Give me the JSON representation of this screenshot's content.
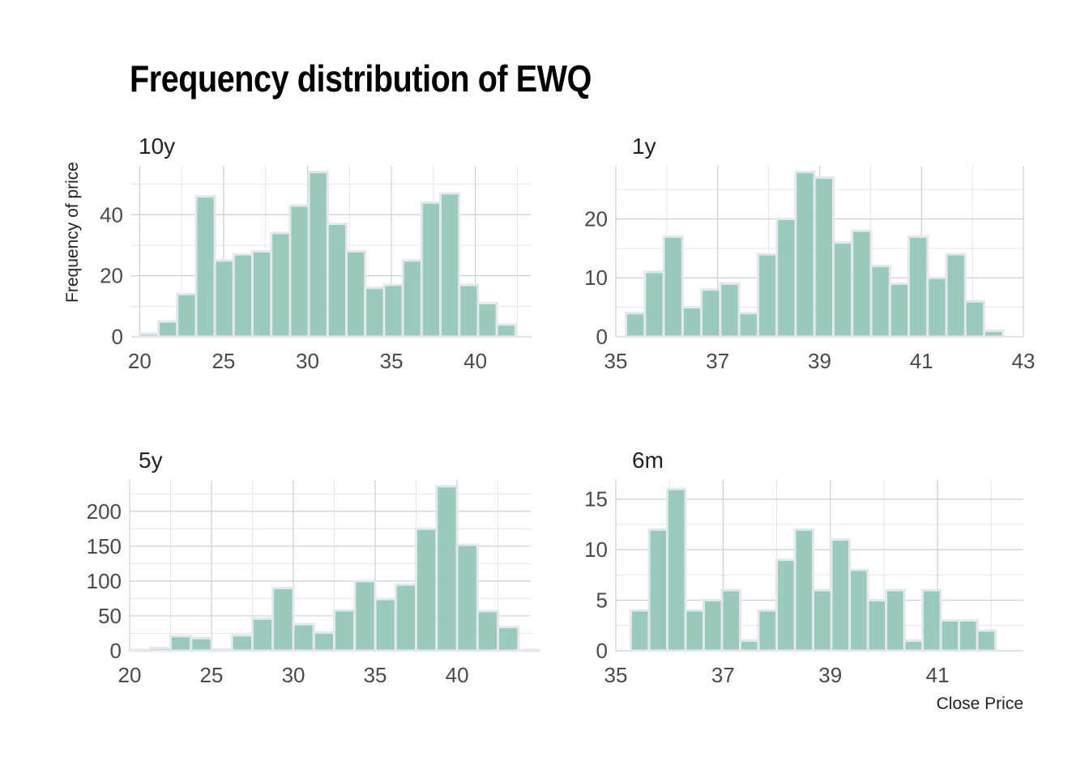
{
  "title": "Frequency distribution of EWQ",
  "x_axis_title": "Close Price",
  "y_axis_title": "Frequency of price",
  "bar_fill": "#94c7b8",
  "bar_outline": "#e4e7ec",
  "chart_data": [
    {
      "type": "bar",
      "facet": "10y",
      "x_ticks": [
        20,
        25,
        30,
        35,
        40
      ],
      "y_ticks": [
        0,
        20,
        40
      ],
      "xlim": [
        19.5,
        43.3
      ],
      "ylim": [
        0,
        56
      ],
      "bins": [
        {
          "x0": 20.0,
          "x1": 21.12,
          "count": 1
        },
        {
          "x0": 21.12,
          "x1": 22.24,
          "count": 5
        },
        {
          "x0": 22.24,
          "x1": 23.36,
          "count": 14
        },
        {
          "x0": 23.36,
          "x1": 24.48,
          "count": 46
        },
        {
          "x0": 24.48,
          "x1": 25.6,
          "count": 25
        },
        {
          "x0": 25.6,
          "x1": 26.72,
          "count": 27
        },
        {
          "x0": 26.72,
          "x1": 27.84,
          "count": 28
        },
        {
          "x0": 27.84,
          "x1": 28.96,
          "count": 34
        },
        {
          "x0": 28.96,
          "x1": 30.08,
          "count": 43
        },
        {
          "x0": 30.08,
          "x1": 31.2,
          "count": 54
        },
        {
          "x0": 31.2,
          "x1": 32.32,
          "count": 37
        },
        {
          "x0": 32.32,
          "x1": 33.44,
          "count": 28
        },
        {
          "x0": 33.44,
          "x1": 34.56,
          "count": 16
        },
        {
          "x0": 34.56,
          "x1": 35.68,
          "count": 17
        },
        {
          "x0": 35.68,
          "x1": 36.8,
          "count": 25
        },
        {
          "x0": 36.8,
          "x1": 37.92,
          "count": 44
        },
        {
          "x0": 37.92,
          "x1": 39.04,
          "count": 47
        },
        {
          "x0": 39.04,
          "x1": 40.16,
          "count": 17
        },
        {
          "x0": 40.16,
          "x1": 41.28,
          "count": 11
        },
        {
          "x0": 41.28,
          "x1": 42.4,
          "count": 4
        }
      ]
    },
    {
      "type": "bar",
      "facet": "1y",
      "x_ticks": [
        35,
        37,
        39,
        41,
        43
      ],
      "y_ticks": [
        0,
        10,
        20
      ],
      "xlim": [
        35.0,
        43.0
      ],
      "ylim": [
        0,
        29
      ],
      "bins": [
        {
          "x0": 35.2,
          "x1": 35.57,
          "count": 4
        },
        {
          "x0": 35.57,
          "x1": 35.94,
          "count": 11
        },
        {
          "x0": 35.94,
          "x1": 36.31,
          "count": 17
        },
        {
          "x0": 36.31,
          "x1": 36.68,
          "count": 5
        },
        {
          "x0": 36.68,
          "x1": 37.05,
          "count": 8
        },
        {
          "x0": 37.05,
          "x1": 37.42,
          "count": 9
        },
        {
          "x0": 37.42,
          "x1": 37.79,
          "count": 4
        },
        {
          "x0": 37.79,
          "x1": 38.16,
          "count": 14
        },
        {
          "x0": 38.16,
          "x1": 38.53,
          "count": 20
        },
        {
          "x0": 38.53,
          "x1": 38.9,
          "count": 28
        },
        {
          "x0": 38.9,
          "x1": 39.27,
          "count": 27
        },
        {
          "x0": 39.27,
          "x1": 39.64,
          "count": 16
        },
        {
          "x0": 39.64,
          "x1": 40.01,
          "count": 18
        },
        {
          "x0": 40.01,
          "x1": 40.38,
          "count": 12
        },
        {
          "x0": 40.38,
          "x1": 40.75,
          "count": 9
        },
        {
          "x0": 40.75,
          "x1": 41.12,
          "count": 17
        },
        {
          "x0": 41.12,
          "x1": 41.49,
          "count": 10
        },
        {
          "x0": 41.49,
          "x1": 41.86,
          "count": 14
        },
        {
          "x0": 41.86,
          "x1": 42.23,
          "count": 6
        },
        {
          "x0": 42.23,
          "x1": 42.6,
          "count": 1
        }
      ]
    },
    {
      "type": "bar",
      "facet": "5y",
      "x_ticks": [
        20,
        25,
        30,
        35,
        40
      ],
      "y_ticks": [
        0,
        50,
        100,
        150,
        200
      ],
      "xlim": [
        20.0,
        44.5
      ],
      "ylim": [
        0,
        245
      ],
      "bins": [
        {
          "x0": 20.0,
          "x1": 21.25,
          "count": 1
        },
        {
          "x0": 21.25,
          "x1": 22.5,
          "count": 4
        },
        {
          "x0": 22.5,
          "x1": 23.75,
          "count": 21
        },
        {
          "x0": 23.75,
          "x1": 25.0,
          "count": 18
        },
        {
          "x0": 25.0,
          "x1": 26.25,
          "count": 2
        },
        {
          "x0": 26.25,
          "x1": 27.5,
          "count": 22
        },
        {
          "x0": 27.5,
          "x1": 28.75,
          "count": 46
        },
        {
          "x0": 28.75,
          "x1": 30.0,
          "count": 90
        },
        {
          "x0": 30.0,
          "x1": 31.25,
          "count": 38
        },
        {
          "x0": 31.25,
          "x1": 32.5,
          "count": 26
        },
        {
          "x0": 32.5,
          "x1": 33.75,
          "count": 58
        },
        {
          "x0": 33.75,
          "x1": 35.0,
          "count": 100
        },
        {
          "x0": 35.0,
          "x1": 36.25,
          "count": 74
        },
        {
          "x0": 36.25,
          "x1": 37.5,
          "count": 95
        },
        {
          "x0": 37.5,
          "x1": 38.75,
          "count": 175
        },
        {
          "x0": 38.75,
          "x1": 40.0,
          "count": 236
        },
        {
          "x0": 40.0,
          "x1": 41.25,
          "count": 152
        },
        {
          "x0": 41.25,
          "x1": 42.5,
          "count": 57
        },
        {
          "x0": 42.5,
          "x1": 43.75,
          "count": 34
        },
        {
          "x0": 43.75,
          "x1": 45.0,
          "count": 1
        }
      ]
    },
    {
      "type": "bar",
      "facet": "6m",
      "x_ticks": [
        35,
        37,
        39,
        41
      ],
      "y_ticks": [
        0,
        5,
        10,
        15
      ],
      "xlim": [
        35.0,
        42.6
      ],
      "ylim": [
        0,
        16.9
      ],
      "bins": [
        {
          "x0": 35.28,
          "x1": 35.62,
          "count": 4
        },
        {
          "x0": 35.62,
          "x1": 35.96,
          "count": 12
        },
        {
          "x0": 35.96,
          "x1": 36.3,
          "count": 16
        },
        {
          "x0": 36.3,
          "x1": 36.64,
          "count": 4
        },
        {
          "x0": 36.64,
          "x1": 36.98,
          "count": 5
        },
        {
          "x0": 36.98,
          "x1": 37.32,
          "count": 6
        },
        {
          "x0": 37.32,
          "x1": 37.66,
          "count": 1
        },
        {
          "x0": 37.66,
          "x1": 38.0,
          "count": 4
        },
        {
          "x0": 38.0,
          "x1": 38.34,
          "count": 9
        },
        {
          "x0": 38.34,
          "x1": 38.68,
          "count": 12
        },
        {
          "x0": 38.68,
          "x1": 39.02,
          "count": 6
        },
        {
          "x0": 39.02,
          "x1": 39.36,
          "count": 11
        },
        {
          "x0": 39.36,
          "x1": 39.7,
          "count": 8
        },
        {
          "x0": 39.7,
          "x1": 40.04,
          "count": 5
        },
        {
          "x0": 40.04,
          "x1": 40.38,
          "count": 6
        },
        {
          "x0": 40.38,
          "x1": 40.72,
          "count": 1
        },
        {
          "x0": 40.72,
          "x1": 41.06,
          "count": 6
        },
        {
          "x0": 41.06,
          "x1": 41.4,
          "count": 3
        },
        {
          "x0": 41.4,
          "x1": 41.74,
          "count": 3
        },
        {
          "x0": 41.74,
          "x1": 42.08,
          "count": 2
        }
      ]
    }
  ]
}
